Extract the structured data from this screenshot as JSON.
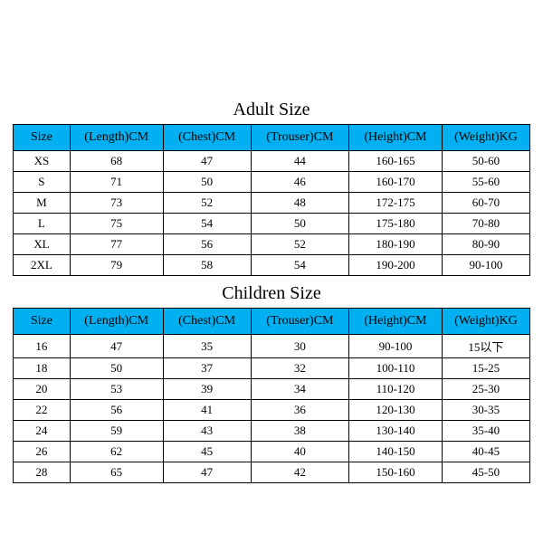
{
  "colors": {
    "header_bg": "#00b0f0",
    "border": "#000000",
    "text": "#000000",
    "bg": "#ffffff"
  },
  "adult": {
    "title": "Adult Size",
    "columns": [
      "Size",
      "(Length)CM",
      "(Chest)CM",
      "(Trouser)CM",
      "(Height)CM",
      "(Weight)KG"
    ],
    "rows": [
      [
        "XS",
        "68",
        "47",
        "44",
        "160-165",
        "50-60"
      ],
      [
        "S",
        "71",
        "50",
        "46",
        "160-170",
        "55-60"
      ],
      [
        "M",
        "73",
        "52",
        "48",
        "172-175",
        "60-70"
      ],
      [
        "L",
        "75",
        "54",
        "50",
        "175-180",
        "70-80"
      ],
      [
        "XL",
        "77",
        "56",
        "52",
        "180-190",
        "80-90"
      ],
      [
        "2XL",
        "79",
        "58",
        "54",
        "190-200",
        "90-100"
      ]
    ]
  },
  "children": {
    "title": "Children Size",
    "columns": [
      "Size",
      "(Length)CM",
      "(Chest)CM",
      "(Trouser)CM",
      "(Height)CM",
      "(Weight)KG"
    ],
    "rows": [
      [
        "16",
        "47",
        "35",
        "30",
        "90-100",
        "15以下"
      ],
      [
        "18",
        "50",
        "37",
        "32",
        "100-110",
        "15-25"
      ],
      [
        "20",
        "53",
        "39",
        "34",
        "110-120",
        "25-30"
      ],
      [
        "22",
        "56",
        "41",
        "36",
        "120-130",
        "30-35"
      ],
      [
        "24",
        "59",
        "43",
        "38",
        "130-140",
        "35-40"
      ],
      [
        "26",
        "62",
        "45",
        "40",
        "140-150",
        "40-45"
      ],
      [
        "28",
        "65",
        "47",
        "42",
        "150-160",
        "45-50"
      ]
    ]
  }
}
